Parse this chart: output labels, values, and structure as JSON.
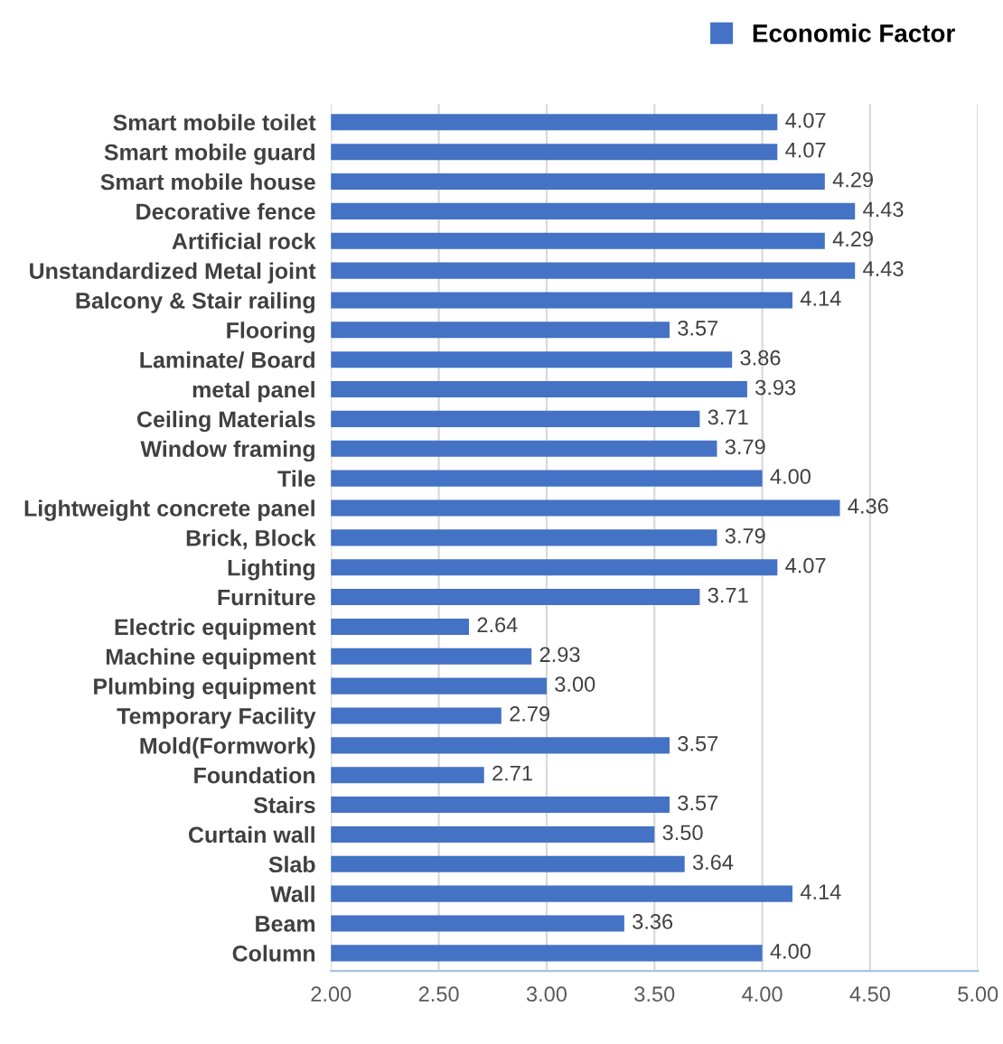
{
  "chart_data": {
    "type": "bar",
    "orientation": "horizontal",
    "categories": [
      "Smart mobile toilet",
      "Smart mobile guard",
      "Smart mobile house",
      "Decorative fence",
      "Artificial rock",
      "Unstandardized Metal joint",
      "Balcony & Stair railing",
      "Flooring",
      "Laminate/ Board",
      "metal panel",
      "Ceiling Materials",
      "Window framing",
      "Tile",
      "Lightweight concrete panel",
      "Brick, Block",
      "Lighting",
      "Furniture",
      "Electric equipment",
      "Machine equipment",
      "Plumbing equipment",
      "Temporary Facility",
      "Mold(Formwork)",
      "Foundation",
      "Stairs",
      "Curtain wall",
      "Slab",
      "Wall",
      "Beam",
      "Column"
    ],
    "series": [
      {
        "name": "Economic Factor",
        "color": "#4472c4",
        "values": [
          4.07,
          4.07,
          4.29,
          4.43,
          4.29,
          4.43,
          4.14,
          3.57,
          3.86,
          3.93,
          3.71,
          3.79,
          4.0,
          4.36,
          3.79,
          4.07,
          3.71,
          2.64,
          2.93,
          3.0,
          2.79,
          3.57,
          2.71,
          3.57,
          3.5,
          3.64,
          4.14,
          3.36,
          4.0
        ],
        "value_labels": [
          "4.07",
          "4.07",
          "4.29",
          "4.43",
          "4.29",
          "4.43",
          "4.14",
          "3.57",
          "3.86",
          "3.93",
          "3.71",
          "3.79",
          "4.00",
          "4.36",
          "3.79",
          "4.07",
          "3.71",
          "2.64",
          "2.93",
          "3.00",
          "2.79",
          "3.57",
          "2.71",
          "3.57",
          "3.50",
          "3.64",
          "4.14",
          "3.36",
          "4.00"
        ]
      }
    ],
    "xlim": [
      2,
      5
    ],
    "xticks": [
      {
        "value": 2,
        "label": "2.00"
      },
      {
        "value": 2.5,
        "label": "2.50"
      },
      {
        "value": 3,
        "label": "3.00"
      },
      {
        "value": 3.5,
        "label": "3.50"
      },
      {
        "value": 4,
        "label": "4.00"
      },
      {
        "value": 4.5,
        "label": "4.50"
      },
      {
        "value": 5,
        "label": "5.00"
      }
    ],
    "grid": "x",
    "legend": "top right"
  }
}
